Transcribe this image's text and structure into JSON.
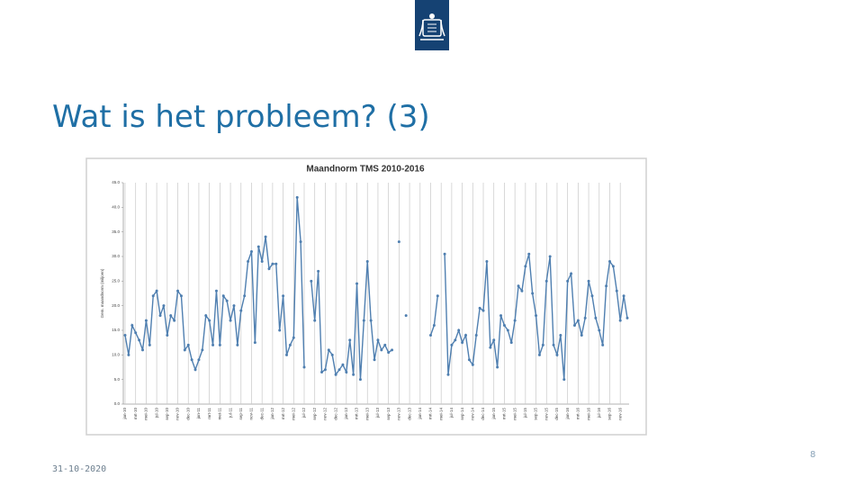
{
  "slide": {
    "title": "Wat is het probleem? (3)",
    "page_number": "8",
    "date": "31-10-2020"
  },
  "chart_data": {
    "type": "line",
    "title": "Maandnorm TMS 2010-2016",
    "y_label": "Gem. maandnorm (miljoen)",
    "color": "#4f7fb0",
    "grid": true,
    "ylim": [
      0,
      45
    ],
    "yticks": [
      {
        "value": 0,
        "label": "0.0"
      },
      {
        "value": 5,
        "label": "5.0"
      },
      {
        "value": 10,
        "label": "10.0"
      },
      {
        "value": 15,
        "label": "15.0"
      },
      {
        "value": 20,
        "label": "20.0"
      },
      {
        "value": 25,
        "label": "25.0"
      },
      {
        "value": 30,
        "label": "30.0"
      },
      {
        "value": 35,
        "label": "35.0"
      },
      {
        "value": 40,
        "label": "40.0"
      },
      {
        "value": 45,
        "label": "45.0"
      }
    ],
    "categories": [
      "jan-10",
      null,
      null,
      "mrt-10",
      null,
      null,
      "mei-10",
      null,
      null,
      "jul-10",
      null,
      null,
      "sep-10",
      null,
      null,
      "nov-10",
      null,
      null,
      "dec-10",
      null,
      null,
      "jan-11",
      null,
      null,
      "mrt-11",
      null,
      null,
      "mei-11",
      null,
      null,
      "jul-11",
      null,
      null,
      "sep-11",
      null,
      null,
      "nov-11",
      null,
      null,
      "dec-11",
      null,
      null,
      "jan-12",
      null,
      null,
      "mrt-12",
      null,
      null,
      "mei-12",
      null,
      null,
      "jul-12",
      null,
      null,
      "sep-12",
      null,
      null,
      "nov-12",
      null,
      null,
      "dec-12",
      null,
      null,
      "jan-13",
      null,
      null,
      "mrt-13",
      null,
      null,
      "mei-13",
      null,
      null,
      "jul-13",
      null,
      null,
      "sep-13",
      null,
      null,
      "nov-13",
      null,
      null,
      "dec-13",
      null,
      null,
      "jan-14",
      null,
      null,
      "mrt-14",
      null,
      null,
      "mei-14",
      null,
      null,
      "jul-14",
      null,
      null,
      "sep-14",
      null,
      null,
      "nov-14",
      null,
      null,
      "dec-14",
      null,
      null,
      "jan-15",
      null,
      null,
      "mrt-15",
      null,
      null,
      "mei-15",
      null,
      null,
      "jul-15",
      null,
      null,
      "sep-15",
      null,
      null,
      "nov-15",
      null,
      null,
      "dec-15",
      null,
      null,
      "jan-16",
      null,
      null,
      "mrt-16",
      null,
      null,
      "mei-16",
      null,
      null,
      "jul-16",
      null,
      null,
      "sep-16",
      null,
      null,
      "nov-16",
      null,
      null
    ],
    "values": [
      14,
      10,
      16,
      14.5,
      13,
      11,
      17,
      12,
      22,
      23,
      18,
      20,
      14,
      18,
      17,
      23,
      22,
      11,
      12,
      9,
      7,
      9,
      11,
      18,
      17,
      12,
      23,
      12,
      22,
      21,
      17,
      20,
      12,
      19,
      22,
      29,
      31,
      12.5,
      32,
      29,
      34,
      27.5,
      28.5,
      28.5,
      15,
      22,
      10,
      12,
      13.5,
      42,
      33,
      7.5,
      null,
      25,
      17,
      27,
      6.5,
      7,
      11,
      10,
      6,
      7,
      8,
      6.5,
      13,
      6,
      24.5,
      5,
      17,
      29,
      17,
      9,
      13,
      11,
      12,
      10.5,
      11,
      null,
      33,
      null,
      18,
      null,
      null,
      null,
      null,
      null,
      null,
      14,
      16,
      22,
      null,
      30.5,
      6,
      12,
      13,
      15,
      12.5,
      14,
      9,
      8,
      14,
      19.5,
      19,
      29,
      11.5,
      13,
      7.5,
      18,
      16,
      15,
      12.5,
      17,
      24,
      23,
      28,
      30.5,
      22.5,
      18,
      10,
      12,
      25,
      30,
      12,
      10,
      14,
      5,
      25,
      26.5,
      16,
      17,
      14,
      17.5,
      25,
      22,
      17.5,
      15,
      12,
      24,
      29,
      28,
      23,
      17,
      22,
      17.5
    ]
  }
}
